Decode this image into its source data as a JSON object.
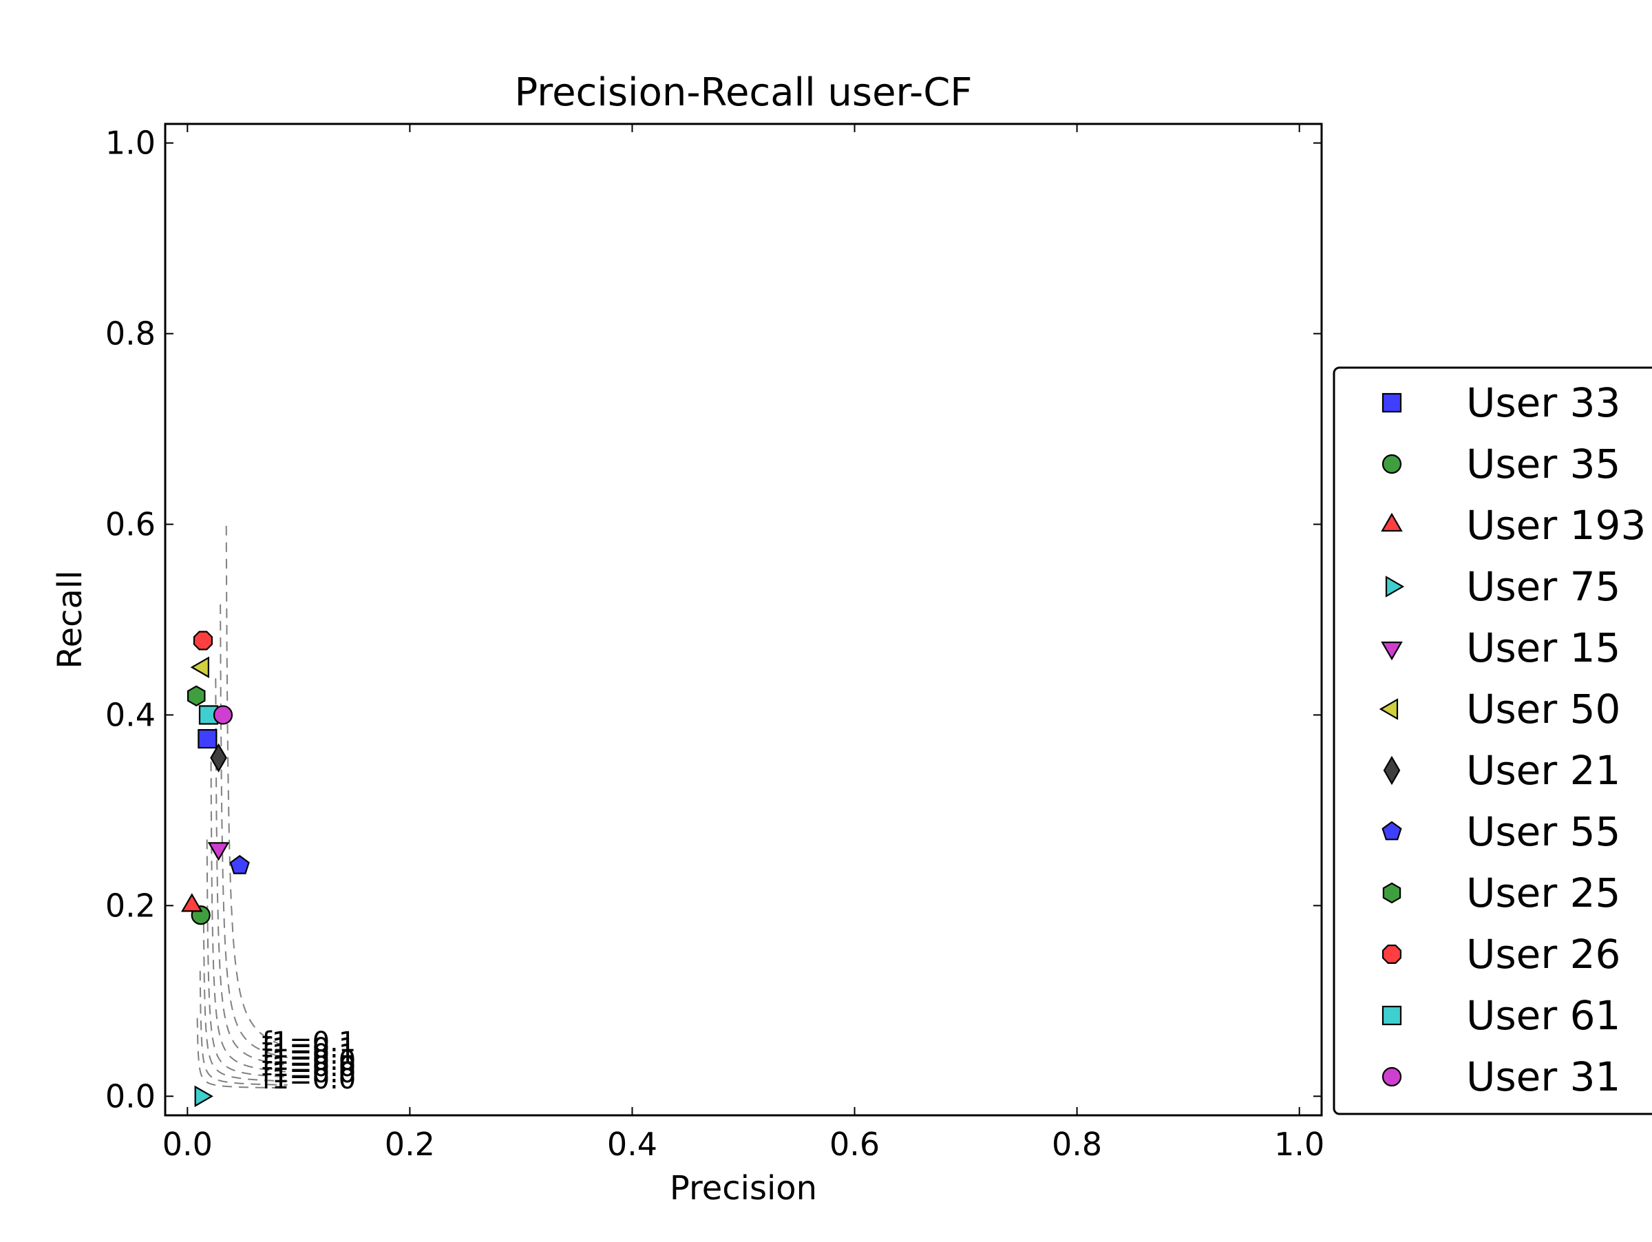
{
  "chart_data": {
    "type": "scatter",
    "title": "Precision-Recall user-CF",
    "xlabel": "Precision",
    "ylabel": "Recall",
    "xlim": [
      -0.02,
      1.02
    ],
    "ylim": [
      -0.02,
      1.02
    ],
    "xticks": [
      0.0,
      0.2,
      0.4,
      0.6,
      0.8,
      1.0
    ],
    "xtick_labels": [
      "0.0",
      "0.2",
      "0.4",
      "0.6",
      "0.8",
      "1.0"
    ],
    "yticks": [
      0.0,
      0.2,
      0.4,
      0.6,
      0.8,
      1.0
    ],
    "ytick_labels": [
      "0.0",
      "0.2",
      "0.4",
      "0.6",
      "0.8",
      "1.0"
    ],
    "grid": false,
    "legend_position": "outside-right",
    "iso_f1_lines": {
      "style": "dashed",
      "color": "#808080",
      "values": [
        0.1,
        0.1,
        0.1,
        0.0,
        0.0,
        0.0,
        0.0
      ],
      "labels": [
        "f1=0.1",
        "f1=0.1",
        "f1=0.1",
        "f1=0.0",
        "f1=0.0",
        "f1=0.0",
        "f1=0.0"
      ]
    },
    "series": [
      {
        "name": "User 33",
        "marker": "square",
        "color": "#3f3fff",
        "x": 0.018,
        "y": 0.375
      },
      {
        "name": "User 35",
        "marker": "circle",
        "color": "#3f9f3f",
        "x": 0.012,
        "y": 0.19
      },
      {
        "name": "User 193",
        "marker": "triangle-up",
        "color": "#ff3f3f",
        "x": 0.004,
        "y": 0.2
      },
      {
        "name": "User 75",
        "marker": "triangle-right",
        "color": "#3fcfcf",
        "x": 0.012,
        "y": 0.0
      },
      {
        "name": "User 15",
        "marker": "triangle-down",
        "color": "#cf3fcf",
        "x": 0.028,
        "y": 0.26
      },
      {
        "name": "User 50",
        "marker": "triangle-left",
        "color": "#cfcf3f",
        "x": 0.014,
        "y": 0.45
      },
      {
        "name": "User 21",
        "marker": "diamond",
        "color": "#3f3f3f",
        "x": 0.028,
        "y": 0.355
      },
      {
        "name": "User 55",
        "marker": "pentagon",
        "color": "#3f3fff",
        "x": 0.047,
        "y": 0.242
      },
      {
        "name": "User 25",
        "marker": "hexagon",
        "color": "#3f9f3f",
        "x": 0.008,
        "y": 0.42
      },
      {
        "name": "User 26",
        "marker": "octagon",
        "color": "#ff3f3f",
        "x": 0.014,
        "y": 0.478
      },
      {
        "name": "User 61",
        "marker": "square",
        "color": "#3fcfcf",
        "x": 0.019,
        "y": 0.4
      },
      {
        "name": "User 31",
        "marker": "circle",
        "color": "#cf3fcf",
        "x": 0.032,
        "y": 0.4
      }
    ]
  }
}
